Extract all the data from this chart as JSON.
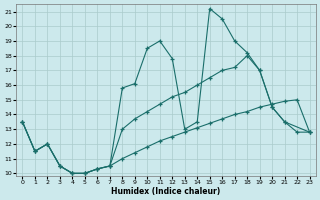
{
  "xlabel": "Humidex (Indice chaleur)",
  "background_color": "#cce9ec",
  "grid_color": "#aacccc",
  "line_color": "#1a6e6a",
  "xlim": [
    -0.5,
    23.5
  ],
  "ylim": [
    9.8,
    21.5
  ],
  "yticks": [
    10,
    11,
    12,
    13,
    14,
    15,
    16,
    17,
    18,
    19,
    20,
    21
  ],
  "xticks": [
    0,
    1,
    2,
    3,
    4,
    5,
    6,
    7,
    8,
    9,
    10,
    11,
    12,
    13,
    14,
    15,
    16,
    17,
    18,
    19,
    20,
    21,
    22,
    23
  ],
  "s1_x": [
    0,
    1,
    2,
    3,
    4,
    5,
    6,
    7,
    8,
    9,
    10,
    11,
    12,
    13,
    14,
    15,
    16,
    17,
    18,
    19,
    20,
    21,
    23
  ],
  "s1_y": [
    13.5,
    11.5,
    12.0,
    10.5,
    10.0,
    10.0,
    10.3,
    10.5,
    15.8,
    16.1,
    18.5,
    19.0,
    17.8,
    13.0,
    13.5,
    21.2,
    20.5,
    19.0,
    18.2,
    17.0,
    14.5,
    13.5,
    12.8
  ],
  "s2_x": [
    0,
    1,
    2,
    3,
    4,
    5,
    6,
    7,
    8,
    9,
    10,
    11,
    12,
    13,
    14,
    15,
    16,
    17,
    18,
    19,
    20,
    21,
    22,
    23
  ],
  "s2_y": [
    13.5,
    11.5,
    12.0,
    10.5,
    10.0,
    10.0,
    10.3,
    10.5,
    13.0,
    13.7,
    14.2,
    14.7,
    15.2,
    15.5,
    16.0,
    16.5,
    17.0,
    17.2,
    18.0,
    17.0,
    14.5,
    13.5,
    12.8,
    12.8
  ],
  "s3_x": [
    0,
    1,
    2,
    3,
    4,
    5,
    6,
    7,
    8,
    9,
    10,
    11,
    12,
    13,
    14,
    15,
    16,
    17,
    18,
    19,
    20,
    21,
    22,
    23
  ],
  "s3_y": [
    13.5,
    11.5,
    12.0,
    10.5,
    10.0,
    10.0,
    10.3,
    10.5,
    11.0,
    11.4,
    11.8,
    12.2,
    12.5,
    12.8,
    13.1,
    13.4,
    13.7,
    14.0,
    14.2,
    14.5,
    14.7,
    14.9,
    15.0,
    12.8
  ]
}
